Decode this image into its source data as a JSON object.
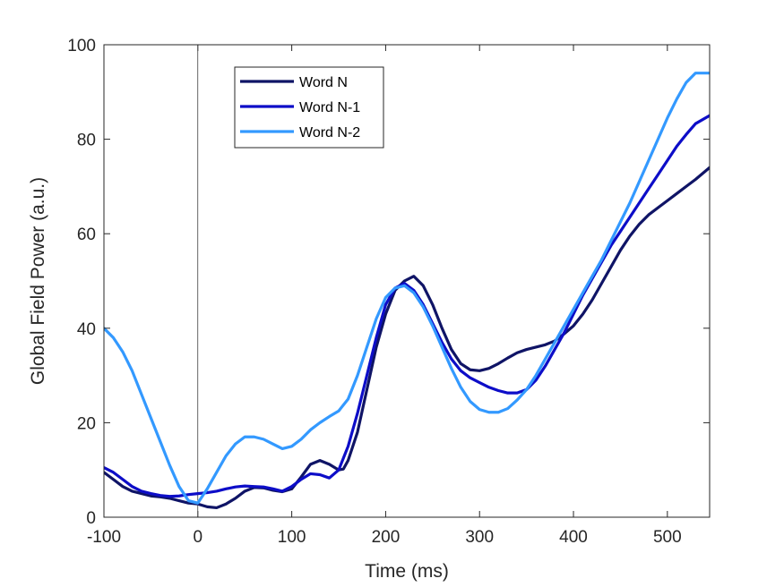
{
  "chart_data": {
    "type": "line",
    "xlabel": "Time (ms)",
    "ylabel": "Global Field Power (a.u.)",
    "xlim": [
      -100,
      545
    ],
    "ylim": [
      0,
      100
    ],
    "xticks": [
      -100,
      0,
      100,
      200,
      300,
      400,
      500
    ],
    "yticks": [
      0,
      20,
      40,
      60,
      80,
      100
    ],
    "xtick_labels": [
      "-100",
      "0",
      "100",
      "200",
      "300",
      "400",
      "500"
    ],
    "ytick_labels": [
      "0",
      "20",
      "40",
      "60",
      "80",
      "100"
    ],
    "grid": false,
    "legend_position": "top-left inside",
    "reference_line_x": 0,
    "series": [
      {
        "name": "Word N",
        "color": "#0f1466",
        "points": [
          [
            -100,
            9.5
          ],
          [
            -90,
            8
          ],
          [
            -80,
            6.5
          ],
          [
            -70,
            5.5
          ],
          [
            -60,
            5
          ],
          [
            -50,
            4.5
          ],
          [
            -40,
            4.3
          ],
          [
            -30,
            4
          ],
          [
            -20,
            3.5
          ],
          [
            -10,
            3
          ],
          [
            0,
            2.8
          ],
          [
            10,
            2.2
          ],
          [
            20,
            2
          ],
          [
            30,
            2.8
          ],
          [
            40,
            4
          ],
          [
            50,
            5.5
          ],
          [
            60,
            6.3
          ],
          [
            70,
            6.2
          ],
          [
            80,
            5.7
          ],
          [
            90,
            5.4
          ],
          [
            100,
            6
          ],
          [
            110,
            8.5
          ],
          [
            120,
            11.2
          ],
          [
            130,
            12
          ],
          [
            140,
            11.2
          ],
          [
            150,
            10
          ],
          [
            155,
            10.2
          ],
          [
            160,
            12
          ],
          [
            170,
            18
          ],
          [
            180,
            27
          ],
          [
            190,
            36
          ],
          [
            200,
            43
          ],
          [
            210,
            48
          ],
          [
            220,
            50
          ],
          [
            230,
            51
          ],
          [
            240,
            49
          ],
          [
            250,
            45
          ],
          [
            260,
            40
          ],
          [
            270,
            35.5
          ],
          [
            280,
            32.5
          ],
          [
            290,
            31.2
          ],
          [
            300,
            31
          ],
          [
            310,
            31.5
          ],
          [
            320,
            32.5
          ],
          [
            330,
            33.7
          ],
          [
            340,
            34.8
          ],
          [
            350,
            35.5
          ],
          [
            360,
            36
          ],
          [
            370,
            36.5
          ],
          [
            380,
            37.3
          ],
          [
            390,
            38.8
          ],
          [
            400,
            40.5
          ],
          [
            410,
            43
          ],
          [
            420,
            46
          ],
          [
            430,
            49.5
          ],
          [
            440,
            53
          ],
          [
            450,
            56.5
          ],
          [
            460,
            59.5
          ],
          [
            470,
            62
          ],
          [
            480,
            64
          ],
          [
            490,
            65.5
          ],
          [
            500,
            67
          ],
          [
            510,
            68.5
          ],
          [
            520,
            70
          ],
          [
            530,
            71.5
          ],
          [
            545,
            74
          ]
        ]
      },
      {
        "name": "Word N-1",
        "color": "#0d0dc8",
        "points": [
          [
            -100,
            10.5
          ],
          [
            -90,
            9.5
          ],
          [
            -80,
            8
          ],
          [
            -70,
            6.5
          ],
          [
            -60,
            5.5
          ],
          [
            -50,
            5
          ],
          [
            -40,
            4.6
          ],
          [
            -30,
            4.4
          ],
          [
            -20,
            4.5
          ],
          [
            -10,
            4.8
          ],
          [
            0,
            5
          ],
          [
            10,
            5.2
          ],
          [
            20,
            5.5
          ],
          [
            30,
            6
          ],
          [
            40,
            6.4
          ],
          [
            50,
            6.6
          ],
          [
            60,
            6.5
          ],
          [
            70,
            6.4
          ],
          [
            80,
            6
          ],
          [
            90,
            5.5
          ],
          [
            100,
            6.5
          ],
          [
            110,
            8
          ],
          [
            120,
            9.2
          ],
          [
            130,
            9
          ],
          [
            140,
            8.3
          ],
          [
            150,
            10
          ],
          [
            160,
            15
          ],
          [
            170,
            22
          ],
          [
            180,
            30
          ],
          [
            190,
            38
          ],
          [
            200,
            45
          ],
          [
            210,
            48.5
          ],
          [
            220,
            49.5
          ],
          [
            230,
            48
          ],
          [
            240,
            45
          ],
          [
            250,
            41
          ],
          [
            260,
            37
          ],
          [
            270,
            33.5
          ],
          [
            280,
            31
          ],
          [
            290,
            29.5
          ],
          [
            300,
            28.5
          ],
          [
            310,
            27.5
          ],
          [
            320,
            26.8
          ],
          [
            330,
            26.3
          ],
          [
            340,
            26.3
          ],
          [
            350,
            27
          ],
          [
            360,
            29
          ],
          [
            370,
            32
          ],
          [
            380,
            35.5
          ],
          [
            390,
            39
          ],
          [
            400,
            43
          ],
          [
            410,
            47
          ],
          [
            420,
            50.5
          ],
          [
            430,
            54
          ],
          [
            440,
            57.5
          ],
          [
            450,
            60.5
          ],
          [
            460,
            63.5
          ],
          [
            470,
            66.5
          ],
          [
            480,
            69.5
          ],
          [
            490,
            72.5
          ],
          [
            500,
            75.5
          ],
          [
            510,
            78.5
          ],
          [
            520,
            81
          ],
          [
            530,
            83.3
          ],
          [
            545,
            85
          ]
        ]
      },
      {
        "name": "Word N-2",
        "color": "#3399ff",
        "points": [
          [
            -100,
            40
          ],
          [
            -90,
            38
          ],
          [
            -80,
            35
          ],
          [
            -70,
            31
          ],
          [
            -60,
            26
          ],
          [
            -50,
            21
          ],
          [
            -40,
            16
          ],
          [
            -30,
            11
          ],
          [
            -20,
            6.5
          ],
          [
            -10,
            3.5
          ],
          [
            0,
            3
          ],
          [
            10,
            6
          ],
          [
            20,
            9.5
          ],
          [
            30,
            13
          ],
          [
            40,
            15.5
          ],
          [
            50,
            17
          ],
          [
            60,
            17
          ],
          [
            70,
            16.5
          ],
          [
            80,
            15.5
          ],
          [
            90,
            14.5
          ],
          [
            100,
            15
          ],
          [
            110,
            16.5
          ],
          [
            120,
            18.5
          ],
          [
            130,
            20
          ],
          [
            140,
            21.3
          ],
          [
            150,
            22.5
          ],
          [
            160,
            25
          ],
          [
            170,
            30
          ],
          [
            180,
            36
          ],
          [
            190,
            42
          ],
          [
            200,
            46.5
          ],
          [
            210,
            48.5
          ],
          [
            220,
            49
          ],
          [
            230,
            47.5
          ],
          [
            240,
            44.5
          ],
          [
            250,
            40.5
          ],
          [
            260,
            36
          ],
          [
            270,
            31.5
          ],
          [
            280,
            27.5
          ],
          [
            290,
            24.5
          ],
          [
            300,
            22.8
          ],
          [
            310,
            22.2
          ],
          [
            320,
            22.2
          ],
          [
            330,
            23
          ],
          [
            340,
            24.8
          ],
          [
            350,
            27
          ],
          [
            360,
            30
          ],
          [
            370,
            33.5
          ],
          [
            380,
            37
          ],
          [
            390,
            40.5
          ],
          [
            400,
            44
          ],
          [
            410,
            47.5
          ],
          [
            420,
            51
          ],
          [
            430,
            54.5
          ],
          [
            440,
            58.5
          ],
          [
            450,
            62.5
          ],
          [
            460,
            66.5
          ],
          [
            470,
            71
          ],
          [
            480,
            75.5
          ],
          [
            490,
            80
          ],
          [
            500,
            84.5
          ],
          [
            510,
            88.5
          ],
          [
            520,
            92
          ],
          [
            530,
            94
          ],
          [
            545,
            94
          ]
        ]
      }
    ]
  }
}
